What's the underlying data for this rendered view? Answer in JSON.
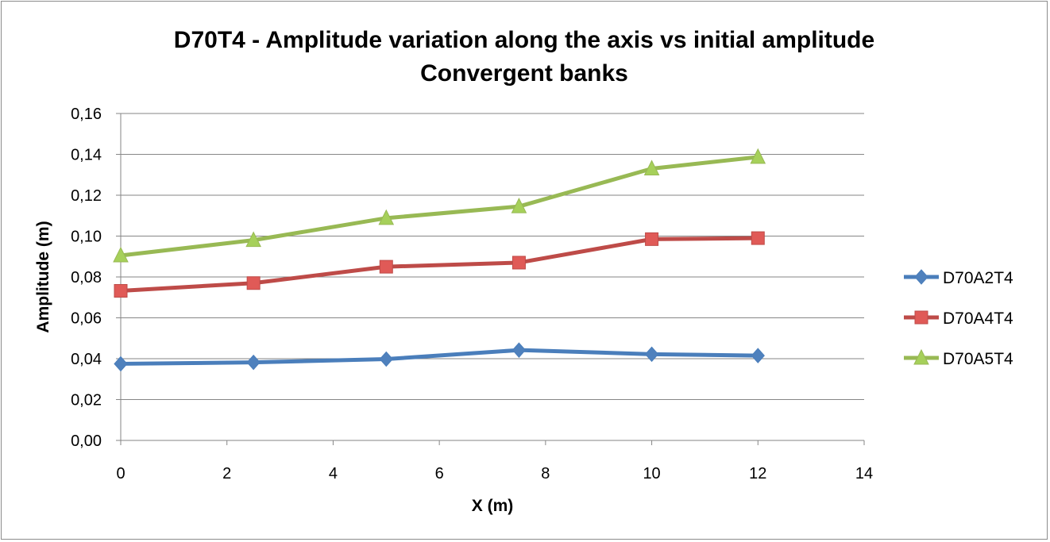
{
  "chart_data": {
    "type": "line",
    "title": "D70T4 - Amplitude variation along the axis vs initial amplitude",
    "subtitle": "Convergent banks",
    "xlabel": "X (m)",
    "ylabel": "Amplitude (m)",
    "xlim": [
      0,
      14
    ],
    "ylim": [
      0,
      0.16
    ],
    "x_ticks": [
      "0",
      "2",
      "4",
      "6",
      "8",
      "10",
      "12",
      "14"
    ],
    "y_ticks": [
      "0,00",
      "0,02",
      "0,04",
      "0,06",
      "0,08",
      "0,10",
      "0,12",
      "0,14",
      "0,16"
    ],
    "grid": "horizontal",
    "legend_position": "right",
    "x": [
      0,
      2.5,
      5,
      7.5,
      10,
      12
    ],
    "series": [
      {
        "name": "D70A2T4",
        "color": "#4a7ebb",
        "marker_color": "#4f81bd",
        "marker": "diamond",
        "values": [
          0.0375,
          0.0382,
          0.0398,
          0.0442,
          0.0422,
          0.0415
        ]
      },
      {
        "name": "D70A4T4",
        "color": "#be4b48",
        "marker_color": "#e05a57",
        "marker": "square",
        "values": [
          0.0732,
          0.077,
          0.085,
          0.087,
          0.0985,
          0.099
        ]
      },
      {
        "name": "D70A5T4",
        "color": "#98b954",
        "marker_color": "#a6d05a",
        "marker": "triangle",
        "values": [
          0.0905,
          0.098,
          0.1088,
          0.1145,
          0.133,
          0.1387
        ]
      }
    ]
  }
}
